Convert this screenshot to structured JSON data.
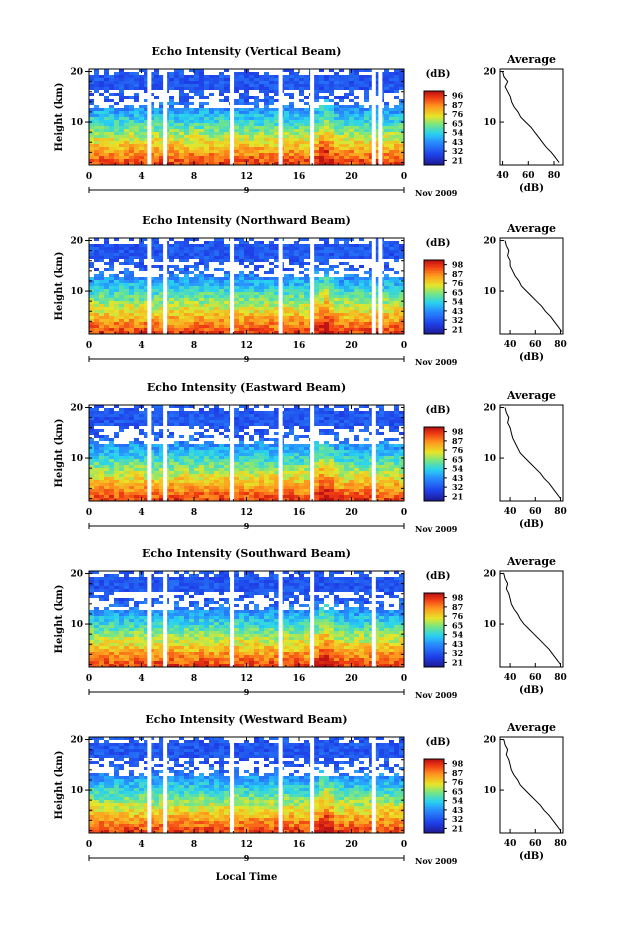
{
  "chart_data": [
    {
      "type": "heatmap",
      "title": "Echo Intensity (Vertical Beam)",
      "ylabel": "Height (km)",
      "xlabel": "",
      "x_ticks": [
        "0",
        "4",
        "8",
        "12",
        "16",
        "20",
        "0"
      ],
      "y_ticks": [
        "10",
        "20"
      ],
      "date_tick": "9",
      "date_label": "Nov 2009",
      "xlim": [
        0,
        24
      ],
      "ylim": [
        1.5,
        20.5
      ],
      "colorbar": {
        "unit": "(dB)",
        "ticks": [
          "96",
          "87",
          "76",
          "65",
          "54",
          "43",
          "32",
          "21"
        ]
      },
      "gaps_hours": [
        4.6,
        5.8,
        10.9,
        14.6,
        17.0,
        21.7,
        22.2
      ],
      "average_profile": {
        "title": "Average",
        "xlabel": "(dB)",
        "x_ticks": [
          "40",
          "60",
          "80"
        ],
        "y_ticks": [
          "10",
          "20"
        ],
        "xlim": [
          38,
          87
        ],
        "height_km": [
          2,
          3,
          4,
          5,
          6,
          7,
          8,
          9,
          10,
          11,
          12,
          13,
          14,
          15,
          16,
          17,
          18,
          19,
          20
        ],
        "db": [
          84,
          81,
          78,
          74,
          71,
          68,
          65,
          62,
          58,
          54,
          52,
          49,
          47,
          46,
          44,
          42,
          44,
          41,
          40
        ]
      }
    },
    {
      "type": "heatmap",
      "title": "Echo Intensity (Northward Beam)",
      "ylabel": "Height (km)",
      "xlabel": "",
      "x_ticks": [
        "0",
        "4",
        "8",
        "12",
        "16",
        "20",
        "0"
      ],
      "y_ticks": [
        "10",
        "20"
      ],
      "date_tick": "9",
      "date_label": "Nov 2009",
      "xlim": [
        0,
        24
      ],
      "ylim": [
        1.5,
        20.5
      ],
      "colorbar": {
        "unit": "(dB)",
        "ticks": [
          "98",
          "87",
          "76",
          "65",
          "54",
          "43",
          "32",
          "21"
        ]
      },
      "gaps_hours": [
        4.6,
        5.8,
        10.9,
        14.6,
        17.0,
        21.7,
        22.2
      ],
      "average_profile": {
        "title": "Average",
        "xlabel": "(dB)",
        "x_ticks": [
          "40",
          "60",
          "80"
        ],
        "y_ticks": [
          "10",
          "20"
        ],
        "xlim": [
          32,
          82
        ],
        "height_km": [
          2,
          3,
          4,
          5,
          6,
          7,
          8,
          9,
          10,
          11,
          12,
          13,
          14,
          15,
          16,
          17,
          18,
          19,
          20
        ],
        "db": [
          81,
          78,
          75,
          72,
          68,
          65,
          61,
          57,
          53,
          49,
          47,
          44,
          42,
          40,
          40,
          38,
          39,
          37,
          36
        ]
      }
    },
    {
      "type": "heatmap",
      "title": "Echo Intensity (Eastward Beam)",
      "ylabel": "Height (km)",
      "xlabel": "",
      "x_ticks": [
        "0",
        "4",
        "8",
        "12",
        "16",
        "20",
        "0"
      ],
      "y_ticks": [
        "10",
        "20"
      ],
      "date_tick": "9",
      "date_label": "Nov 2009",
      "xlim": [
        0,
        24
      ],
      "ylim": [
        1.5,
        20.5
      ],
      "colorbar": {
        "unit": "(dB)",
        "ticks": [
          "98",
          "87",
          "76",
          "65",
          "54",
          "43",
          "32",
          "21"
        ]
      },
      "gaps_hours": [
        4.6,
        5.8,
        10.9,
        14.6,
        17.0,
        21.7
      ],
      "average_profile": {
        "title": "Average",
        "xlabel": "(dB)",
        "x_ticks": [
          "40",
          "60",
          "80"
        ],
        "y_ticks": [
          "10",
          "20"
        ],
        "xlim": [
          32,
          82
        ],
        "height_km": [
          2,
          3,
          4,
          5,
          6,
          7,
          8,
          9,
          10,
          11,
          12,
          13,
          14,
          15,
          16,
          17,
          18,
          19,
          20
        ],
        "db": [
          80,
          77,
          74,
          71,
          67,
          64,
          60,
          56,
          52,
          48,
          46,
          44,
          42,
          41,
          40,
          38,
          39,
          37,
          36
        ]
      }
    },
    {
      "type": "heatmap",
      "title": "Echo Intensity (Southward Beam)",
      "ylabel": "Height (km)",
      "xlabel": "",
      "x_ticks": [
        "0",
        "4",
        "8",
        "12",
        "16",
        "20",
        "0"
      ],
      "y_ticks": [
        "10",
        "20"
      ],
      "date_tick": "9",
      "date_label": "Nov 2009",
      "xlim": [
        0,
        24
      ],
      "ylim": [
        1.5,
        20.5
      ],
      "colorbar": {
        "unit": "(dB)",
        "ticks": [
          "98",
          "87",
          "76",
          "65",
          "54",
          "43",
          "32",
          "21"
        ]
      },
      "gaps_hours": [
        4.6,
        5.8,
        10.9,
        14.6,
        17.0,
        21.7
      ],
      "average_profile": {
        "title": "Average",
        "xlabel": "(dB)",
        "x_ticks": [
          "40",
          "60",
          "80"
        ],
        "y_ticks": [
          "10",
          "20"
        ],
        "xlim": [
          32,
          82
        ],
        "height_km": [
          2,
          3,
          4,
          5,
          6,
          7,
          8,
          9,
          10,
          11,
          12,
          13,
          14,
          15,
          16,
          17,
          18,
          19,
          20
        ],
        "db": [
          80,
          77,
          74,
          71,
          67,
          63,
          59,
          55,
          51,
          48,
          46,
          43,
          41,
          40,
          39,
          37,
          38,
          36,
          35
        ]
      }
    },
    {
      "type": "heatmap",
      "title": "Echo Intensity (Westward Beam)",
      "ylabel": "Height (km)",
      "xlabel": "Local Time",
      "x_ticks": [
        "0",
        "4",
        "8",
        "12",
        "16",
        "20",
        "0"
      ],
      "y_ticks": [
        "10",
        "20"
      ],
      "date_tick": "9",
      "date_label": "Nov 2009",
      "xlim": [
        0,
        24
      ],
      "ylim": [
        1.5,
        20.5
      ],
      "colorbar": {
        "unit": "(dB)",
        "ticks": [
          "98",
          "87",
          "76",
          "65",
          "54",
          "43",
          "32",
          "21"
        ]
      },
      "gaps_hours": [
        4.6,
        5.8,
        10.9,
        14.6,
        17.0,
        21.7
      ],
      "average_profile": {
        "title": "Average",
        "xlabel": "(dB)",
        "x_ticks": [
          "40",
          "60",
          "80"
        ],
        "y_ticks": [
          "10",
          "20"
        ],
        "xlim": [
          32,
          82
        ],
        "height_km": [
          2,
          3,
          4,
          5,
          6,
          7,
          8,
          9,
          10,
          11,
          12,
          13,
          14,
          15,
          16,
          17,
          18,
          19,
          20
        ],
        "db": [
          80,
          77,
          74,
          71,
          67,
          64,
          60,
          56,
          52,
          48,
          46,
          43,
          41,
          40,
          39,
          37,
          38,
          36,
          35
        ]
      }
    }
  ]
}
